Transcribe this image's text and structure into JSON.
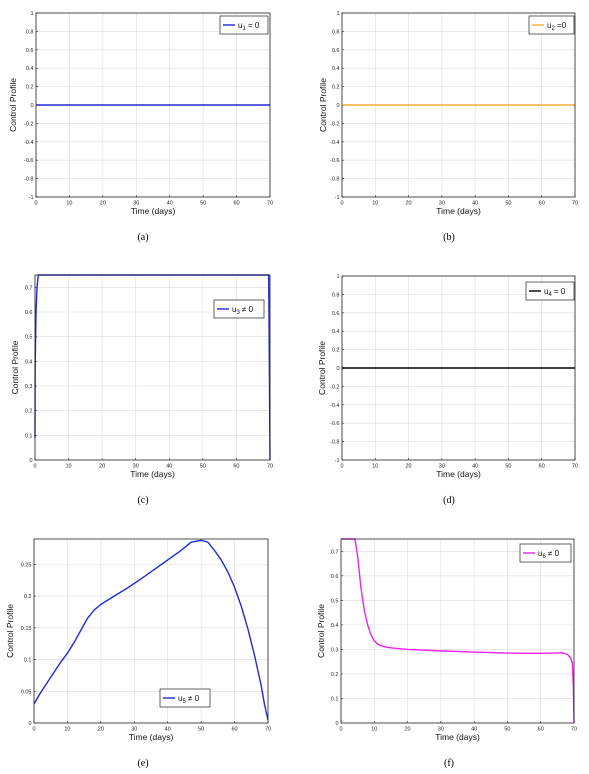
{
  "chart_data": [
    {
      "id": "a",
      "type": "line",
      "caption": "(a)",
      "xlabel": "Time (days)",
      "ylabel": "Control Profile",
      "xlim": [
        0,
        70
      ],
      "ylim": [
        -1,
        1
      ],
      "xticks": [
        "0",
        "10",
        "20",
        "30",
        "40",
        "50",
        "60",
        "70"
      ],
      "yticks": [
        "-1",
        "-0.8",
        "-0.6",
        "-0.4",
        "-0.2",
        "0",
        "0.2",
        "0.4",
        "0.6",
        "0.8",
        "1"
      ],
      "grid": true,
      "legend": {
        "base": "u",
        "sub": "1",
        "rel": " = 0",
        "position": "top-right"
      },
      "series": [
        {
          "color": "#1f2bd6",
          "x": [
            0,
            70
          ],
          "y": [
            0,
            0
          ]
        }
      ]
    },
    {
      "id": "b",
      "type": "line",
      "caption": "(b)",
      "xlabel": "Time (days)",
      "ylabel": "Control Profile",
      "xlim": [
        0,
        70
      ],
      "ylim": [
        -1,
        1
      ],
      "xticks": [
        "0",
        "10",
        "20",
        "30",
        "40",
        "50",
        "60",
        "70"
      ],
      "yticks": [
        "-1",
        "-0.8",
        "-0.6",
        "-0.4",
        "-0.2",
        "0",
        "0.2",
        "0.4",
        "0.6",
        "0.8",
        "1"
      ],
      "grid": true,
      "legend": {
        "base": "u",
        "sub": "2",
        "rel": " =0",
        "position": "top-right"
      },
      "series": [
        {
          "color": "#f0b030",
          "x": [
            0,
            70
          ],
          "y": [
            0,
            0
          ]
        }
      ]
    },
    {
      "id": "c",
      "type": "line",
      "caption": "(c)",
      "xlabel": "Time (days)",
      "ylabel": "Control Profile",
      "xlim": [
        0,
        70
      ],
      "ylim": [
        0,
        0.75
      ],
      "xticks": [
        "0",
        "10",
        "20",
        "30",
        "40",
        "50",
        "60",
        "70"
      ],
      "yticks": [
        "0",
        "0.1",
        "0.2",
        "0.3",
        "0.4",
        "0.5",
        "0.6",
        "0.7"
      ],
      "grid": true,
      "legend": {
        "base": "u",
        "sub": "3",
        "rel": " ≠ 0",
        "position": "right"
      },
      "series": [
        {
          "color": "#1f2bd6",
          "x": [
            0,
            0.05,
            0.3,
            0.6,
            1.0,
            69.6,
            69.8,
            70
          ],
          "y": [
            0.09,
            0.38,
            0.6,
            0.7,
            0.75,
            0.75,
            0.4,
            0
          ]
        }
      ]
    },
    {
      "id": "d",
      "type": "line",
      "caption": "(d)",
      "xlabel": "Time (days)",
      "ylabel": "Control Profile",
      "xlim": [
        0,
        70
      ],
      "ylim": [
        -1,
        1
      ],
      "xticks": [
        "0",
        "10",
        "20",
        "30",
        "40",
        "50",
        "60",
        "70"
      ],
      "yticks": [
        "-1",
        "-0.8",
        "-0.6",
        "-0.4",
        "-0.2",
        "0",
        "0.2",
        "0.4",
        "0.6",
        "0.8",
        "1"
      ],
      "grid": true,
      "legend": {
        "base": "u",
        "sub": "4",
        "rel": " = 0",
        "position": "top-right"
      },
      "series": [
        {
          "color": "#000000",
          "x": [
            0,
            70
          ],
          "y": [
            0,
            0
          ]
        }
      ]
    },
    {
      "id": "e",
      "type": "line",
      "caption": "(e)",
      "xlabel": "Time (days)",
      "ylabel": "Control Profile",
      "xlim": [
        0,
        70
      ],
      "ylim": [
        0,
        0.29
      ],
      "xticks": [
        "0",
        "10",
        "20",
        "30",
        "40",
        "50",
        "60",
        "70"
      ],
      "yticks": [
        "0",
        "0.05",
        "0.1",
        "0.15",
        "0.2",
        "0.25"
      ],
      "grid": true,
      "legend": {
        "base": "u",
        "sub": "5",
        "rel": " ≠ 0",
        "position": "bottom-center"
      },
      "series": [
        {
          "color": "#1f2bd6",
          "x": [
            0,
            2,
            4,
            6,
            8,
            10,
            12,
            14,
            16,
            18,
            20,
            24,
            28,
            32,
            36,
            40,
            44,
            47,
            50,
            52,
            54,
            56,
            58,
            60,
            62,
            64,
            66,
            68,
            69,
            70
          ],
          "y": [
            0.03,
            0.048,
            0.064,
            0.08,
            0.096,
            0.11,
            0.127,
            0.146,
            0.165,
            0.178,
            0.187,
            0.2,
            0.213,
            0.227,
            0.242,
            0.257,
            0.272,
            0.285,
            0.288,
            0.285,
            0.272,
            0.257,
            0.238,
            0.214,
            0.184,
            0.148,
            0.106,
            0.058,
            0.028,
            0.005
          ]
        }
      ]
    },
    {
      "id": "f",
      "type": "line",
      "caption": "(f)",
      "xlabel": "Time (days)",
      "ylabel": "Control Profile",
      "xlim": [
        0,
        70
      ],
      "ylim": [
        0,
        0.75
      ],
      "xticks": [
        "0",
        "10",
        "20",
        "30",
        "40",
        "50",
        "60",
        "70"
      ],
      "yticks": [
        "0",
        "0.1",
        "0.2",
        "0.3",
        "0.4",
        "0.5",
        "0.6",
        "0.7"
      ],
      "grid": true,
      "legend": {
        "base": "u",
        "sub": "6",
        "rel": " ≠ 0",
        "position": "top-right"
      },
      "series": [
        {
          "color": "#ee22ee",
          "x": [
            0,
            4.2,
            5,
            6,
            7,
            8,
            9,
            10,
            11,
            12,
            14,
            16,
            20,
            30,
            40,
            50,
            55,
            60,
            64,
            66.5,
            68,
            69,
            69.5,
            69.8,
            70
          ],
          "y": [
            0.75,
            0.75,
            0.68,
            0.55,
            0.46,
            0.4,
            0.36,
            0.335,
            0.322,
            0.315,
            0.308,
            0.305,
            0.3,
            0.294,
            0.289,
            0.285,
            0.284,
            0.284,
            0.285,
            0.286,
            0.28,
            0.265,
            0.245,
            0.15,
            0
          ]
        }
      ]
    }
  ]
}
